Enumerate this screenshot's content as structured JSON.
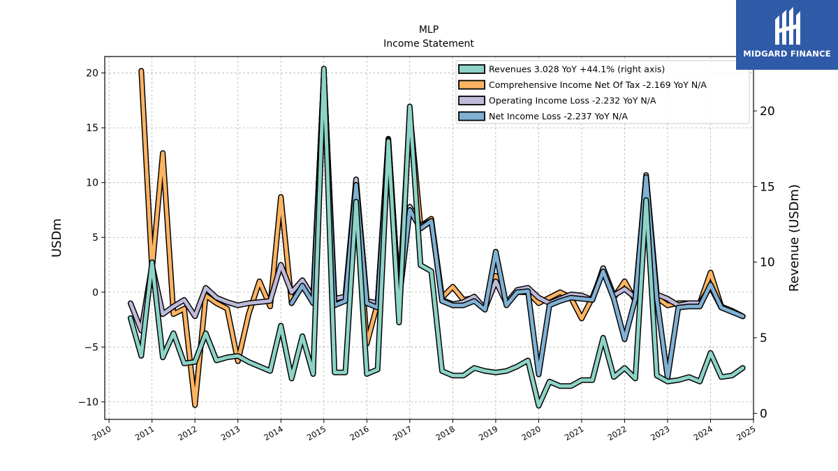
{
  "brand": {
    "name": "MIDGARD FINANCE"
  },
  "chart_data": {
    "type": "line",
    "title": "MLP",
    "subtitle": "Income Statement",
    "ylabel": "USDm",
    "ylabel_right": "Revenue (USDm)",
    "ylim": [
      -11.6,
      21.5
    ],
    "ylim_right": [
      -0.4,
      23.6
    ],
    "xlim": [
      2009.9,
      2025.0
    ],
    "yticks": [
      -10,
      -5,
      0,
      5,
      10,
      15,
      20
    ],
    "yticks_right": [
      0,
      5,
      10,
      15,
      20
    ],
    "xticks": [
      2010,
      2011,
      2012,
      2013,
      2014,
      2015,
      2016,
      2017,
      2018,
      2019,
      2020,
      2021,
      2022,
      2023,
      2024,
      2025
    ],
    "grid": true,
    "legend_position": "top-right",
    "x": [
      2010.5,
      2010.75,
      2011.0,
      2011.25,
      2011.5,
      2011.75,
      2012.0,
      2012.25,
      2012.5,
      2012.75,
      2013.0,
      2013.25,
      2013.5,
      2013.75,
      2014.0,
      2014.25,
      2014.5,
      2014.75,
      2015.0,
      2015.25,
      2015.5,
      2015.75,
      2016.0,
      2016.25,
      2016.5,
      2016.75,
      2017.0,
      2017.25,
      2017.5,
      2017.75,
      2018.0,
      2018.25,
      2018.5,
      2018.75,
      2019.0,
      2019.25,
      2019.5,
      2019.75,
      2020.0,
      2020.25,
      2020.5,
      2020.75,
      2021.0,
      2021.25,
      2021.5,
      2021.75,
      2022.0,
      2022.25,
      2022.5,
      2022.75,
      2023.0,
      2023.25,
      2023.5,
      2023.75,
      2024.0,
      2024.25,
      2024.5,
      2024.75
    ],
    "series": [
      {
        "name": "Revenues  3.028 YoY +44.1% (right axis)",
        "axis": "right",
        "color": "#8dd3c7",
        "values": [
          6.3,
          3.8,
          10.0,
          3.7,
          5.3,
          3.3,
          3.4,
          5.3,
          3.5,
          3.7,
          3.8,
          3.4,
          3.1,
          2.8,
          5.8,
          2.3,
          5.1,
          2.6,
          22.8,
          2.7,
          2.7,
          14.0,
          2.6,
          2.9,
          18.0,
          6.0,
          20.3,
          9.8,
          9.4,
          2.8,
          2.5,
          2.5,
          3.0,
          2.8,
          2.7,
          2.8,
          3.1,
          3.5,
          0.5,
          2.1,
          1.8,
          1.8,
          2.2,
          2.2,
          5.0,
          2.4,
          3.0,
          2.3,
          14.1,
          2.5,
          2.1,
          2.2,
          2.4,
          2.1,
          4.0,
          2.4,
          2.5,
          3.0
        ]
      },
      {
        "name": "Comprehensive Income Net Of Tax  -2.169 YoY N/A",
        "axis": "left",
        "color": "#fdb462",
        "values": [
          null,
          20.2,
          2.0,
          12.7,
          -2.0,
          -1.5,
          -10.3,
          -0.3,
          -1.0,
          -1.5,
          -6.3,
          -2.0,
          1.0,
          -1.3,
          8.7,
          -1.0,
          1.0,
          -0.8,
          20.0,
          -1.0,
          -0.5,
          9.5,
          -4.7,
          -1.0,
          14.0,
          -1.0,
          16.5,
          6.0,
          6.7,
          -0.5,
          0.5,
          -0.7,
          -0.5,
          -1.5,
          1.5,
          -1.0,
          0.0,
          0.0,
          -1.0,
          -0.5,
          0.0,
          -0.5,
          -2.4,
          -0.5,
          2.0,
          -0.5,
          1.0,
          -0.8,
          10.5,
          -0.5,
          -1.2,
          -1.0,
          -1.0,
          -1.0,
          1.8,
          -1.3,
          -1.7,
          -2.2
        ]
      },
      {
        "name": "Operating Income Loss  -2.232 YoY N/A",
        "axis": "left",
        "color": "#bebada",
        "values": [
          -1.0,
          -3.5,
          2.5,
          -2.0,
          -1.3,
          -0.7,
          -2.2,
          0.4,
          -0.5,
          -0.9,
          -1.2,
          -1.0,
          -0.9,
          -0.8,
          2.5,
          0.0,
          1.1,
          -0.5,
          20.0,
          -0.6,
          -0.4,
          10.3,
          -0.8,
          -1.0,
          13.9,
          -0.8,
          7.8,
          6.0,
          6.5,
          -0.7,
          -1.1,
          -0.9,
          -0.4,
          -1.5,
          1.0,
          -1.0,
          0.2,
          0.4,
          -0.5,
          -1.0,
          -0.6,
          -0.2,
          -0.3,
          -0.7,
          2.2,
          -0.3,
          0.3,
          -0.5,
          10.7,
          -0.2,
          -0.6,
          -1.2,
          -1.0,
          -1.0,
          0.5,
          -1.4,
          -1.7,
          -2.2
        ]
      },
      {
        "name": "Net Income Loss  -2.237 YoY N/A",
        "axis": "left",
        "color": "#80b1d3",
        "values": [
          null,
          null,
          null,
          null,
          null,
          null,
          null,
          null,
          null,
          null,
          null,
          null,
          null,
          null,
          null,
          -1.0,
          0.6,
          -1.0,
          20.0,
          -1.2,
          -0.8,
          9.8,
          -1.0,
          -1.4,
          13.6,
          -0.8,
          7.5,
          5.8,
          6.5,
          -0.8,
          -1.2,
          -1.2,
          -0.8,
          -1.6,
          3.7,
          -1.2,
          0.0,
          0.1,
          -7.5,
          -1.2,
          -0.8,
          -0.5,
          -0.6,
          -0.7,
          1.9,
          -0.6,
          -4.3,
          -0.6,
          10.5,
          -0.6,
          -7.8,
          -1.4,
          -1.3,
          -1.3,
          0.7,
          -1.4,
          -1.8,
          -2.2
        ]
      }
    ]
  }
}
